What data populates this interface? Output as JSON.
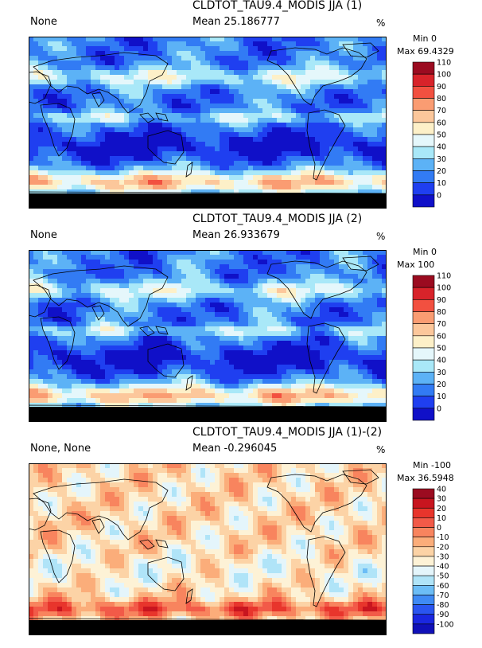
{
  "panels": [
    {
      "title": "CLDTOT_TAU9.4_MODIS JJA (1)",
      "left_label": "None",
      "mean_label": "Mean 25.186777",
      "units": "%",
      "min_label": "Min 0",
      "max_label": "Max 69.4329",
      "scale": "sequential",
      "levels": [
        "110",
        "100",
        "90",
        "80",
        "70",
        "60",
        "50",
        "40",
        "30",
        "20",
        "10",
        "0"
      ],
      "colors": [
        "#9b0b20",
        "#d8232a",
        "#f25040",
        "#fa9c72",
        "#fcc79b",
        "#fdf0c8",
        "#e5f7fb",
        "#a9e8f8",
        "#5cb2f6",
        "#327bf4",
        "#1f3ff0",
        "#1010c8"
      ]
    },
    {
      "title": "CLDTOT_TAU9.4_MODIS JJA (2)",
      "left_label": "None",
      "mean_label": "Mean 26.933679",
      "units": "%",
      "min_label": "Min 0",
      "max_label": "Max 100",
      "scale": "sequential",
      "levels": [
        "110",
        "100",
        "90",
        "80",
        "70",
        "60",
        "50",
        "40",
        "30",
        "20",
        "10",
        "0"
      ],
      "colors": [
        "#9b0b20",
        "#d8232a",
        "#f25040",
        "#fa9c72",
        "#fcc79b",
        "#fdf0c8",
        "#e5f7fb",
        "#a9e8f8",
        "#5cb2f6",
        "#327bf4",
        "#1f3ff0",
        "#1010c8"
      ]
    },
    {
      "title": "CLDTOT_TAU9.4_MODIS JJA (1)-(2)",
      "left_label": "None, None",
      "mean_label": "Mean -0.296045",
      "units": "%",
      "min_label": "Min -100",
      "max_label": "Max 36.5948",
      "scale": "diverging",
      "levels": [
        "40",
        "30",
        "20",
        "10",
        "0",
        "-10",
        "-20",
        "-30",
        "-40",
        "-50",
        "-60",
        "-70",
        "-80",
        "-90",
        "-100"
      ],
      "colors": [
        "#9b0b20",
        "#c8151f",
        "#e8352c",
        "#f25a48",
        "#f8845e",
        "#fbad7a",
        "#fcd3a6",
        "#fdf2d6",
        "#e4f5fb",
        "#b0e4f8",
        "#6cbdf6",
        "#3f8af4",
        "#2a55f0",
        "#1a27e0",
        "#1010b8"
      ]
    }
  ]
}
